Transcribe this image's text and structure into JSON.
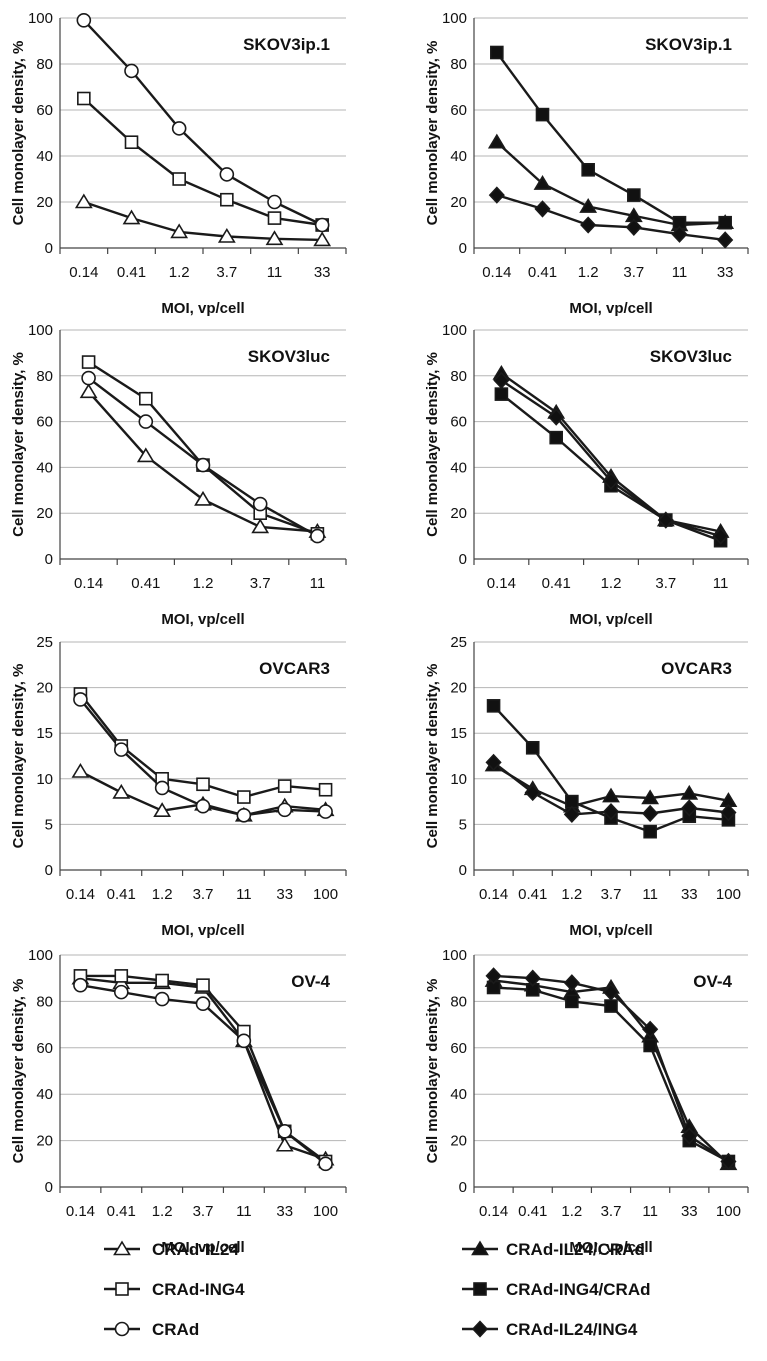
{
  "figure": {
    "ylabel": "Cell monolayer density, %",
    "xlabel": "MOI, vp/cell"
  },
  "legend": {
    "left": [
      {
        "name": "CRAd-IL24",
        "marker": "triangle-open"
      },
      {
        "name": "CRAd-ING4",
        "marker": "square-open"
      },
      {
        "name": "CRAd",
        "marker": "circle-open"
      }
    ],
    "right": [
      {
        "name": "CRAd-IL24/CRAd",
        "marker": "triangle-filled"
      },
      {
        "name": "CRAd-ING4/CRAd",
        "marker": "square-filled"
      },
      {
        "name": "CRAd-IL24/ING4",
        "marker": "diamond-filled"
      }
    ]
  },
  "colors": {
    "line": "#1a1a1a",
    "grid": "#b5b5b5",
    "open_fill": "#ffffff",
    "filled": "#111111"
  },
  "chart_data": [
    {
      "type": "line",
      "title": "SKOV3ip.1",
      "xlabel": "MOI, vp/cell",
      "ylabel": "Cell monolayer density, %",
      "categories": [
        "0.14",
        "0.41",
        "1.2",
        "3.7",
        "11",
        "33"
      ],
      "ylim": [
        0,
        100
      ],
      "yticks": [
        0,
        20,
        40,
        60,
        80,
        100
      ],
      "grid": "horizontal",
      "series": [
        {
          "name": "CRAd-IL24",
          "marker": "triangle-open",
          "values": [
            20,
            13,
            7,
            5,
            4,
            3.5
          ]
        },
        {
          "name": "CRAd-ING4",
          "marker": "square-open",
          "values": [
            65,
            46,
            30,
            21,
            13,
            10
          ]
        },
        {
          "name": "CRAd",
          "marker": "circle-open",
          "values": [
            99,
            77,
            52,
            32,
            20,
            10
          ]
        }
      ]
    },
    {
      "type": "line",
      "title": "SKOV3ip.1",
      "xlabel": "MOI, vp/cell",
      "ylabel": "Cell monolayer density, %",
      "categories": [
        "0.14",
        "0.41",
        "1.2",
        "3.7",
        "11",
        "33"
      ],
      "ylim": [
        0,
        100
      ],
      "yticks": [
        0,
        20,
        40,
        60,
        80,
        100
      ],
      "grid": "horizontal",
      "series": [
        {
          "name": "CRAd-IL24/CRAd",
          "marker": "triangle-filled",
          "values": [
            46,
            28,
            18,
            14,
            10,
            11
          ]
        },
        {
          "name": "CRAd-ING4/CRAd",
          "marker": "square-filled",
          "values": [
            85,
            58,
            34,
            23,
            11,
            11
          ]
        },
        {
          "name": "CRAd-IL24/ING4",
          "marker": "diamond-filled",
          "values": [
            23,
            17,
            10,
            9,
            6,
            3.5
          ]
        }
      ]
    },
    {
      "type": "line",
      "title": "SKOV3luc",
      "xlabel": "MOI, vp/cell",
      "ylabel": "Cell monolayer density, %",
      "categories": [
        "0.14",
        "0.41",
        "1.2",
        "3.7",
        "11"
      ],
      "ylim": [
        0,
        100
      ],
      "yticks": [
        0,
        20,
        40,
        60,
        80,
        100
      ],
      "grid": "horizontal",
      "series": [
        {
          "name": "CRAd-IL24",
          "marker": "triangle-open",
          "values": [
            73,
            45,
            26,
            14,
            12
          ]
        },
        {
          "name": "CRAd-ING4",
          "marker": "square-open",
          "values": [
            86,
            70,
            41,
            20,
            11
          ]
        },
        {
          "name": "CRAd",
          "marker": "circle-open",
          "values": [
            79,
            60,
            41,
            24,
            10
          ]
        }
      ]
    },
    {
      "type": "line",
      "title": "SKOV3luc",
      "xlabel": "MOI, vp/cell",
      "ylabel": "Cell monolayer density, %",
      "categories": [
        "0.14",
        "0.41",
        "1.2",
        "3.7",
        "11"
      ],
      "ylim": [
        0,
        100
      ],
      "yticks": [
        0,
        20,
        40,
        60,
        80,
        100
      ],
      "grid": "horizontal",
      "series": [
        {
          "name": "CRAd-IL24/CRAd",
          "marker": "triangle-filled",
          "values": [
            81,
            64,
            36,
            17,
            12
          ]
        },
        {
          "name": "CRAd-ING4/CRAd",
          "marker": "square-filled",
          "values": [
            72,
            53,
            32,
            17,
            8
          ]
        },
        {
          "name": "CRAd-IL24/ING4",
          "marker": "diamond-filled",
          "values": [
            78,
            62,
            34,
            17,
            10
          ]
        }
      ]
    },
    {
      "type": "line",
      "title": "OVCAR3",
      "xlabel": "MOI, vp/cell",
      "ylabel": "Cell monolayer density, %",
      "categories": [
        "0.14",
        "0.41",
        "1.2",
        "3.7",
        "11",
        "33",
        "100"
      ],
      "ylim": [
        0,
        25
      ],
      "yticks": [
        0,
        5,
        10,
        15,
        20,
        25
      ],
      "grid": "horizontal",
      "series": [
        {
          "name": "CRAd-IL24",
          "marker": "triangle-open",
          "values": [
            10.8,
            8.5,
            6.5,
            7.2,
            6,
            7,
            6.6
          ]
        },
        {
          "name": "CRAd-ING4",
          "marker": "square-open",
          "values": [
            19.3,
            13.6,
            10,
            9.4,
            8,
            9.2,
            8.8
          ]
        },
        {
          "name": "CRAd",
          "marker": "circle-open",
          "values": [
            18.7,
            13.2,
            9,
            7,
            6,
            6.6,
            6.4
          ]
        }
      ]
    },
    {
      "type": "line",
      "title": "OVCAR3",
      "xlabel": "MOI, vp/cell",
      "ylabel": "Cell monolayer density, %",
      "categories": [
        "0.14",
        "0.41",
        "1.2",
        "3.7",
        "11",
        "33",
        "100"
      ],
      "ylim": [
        0,
        25
      ],
      "yticks": [
        0,
        5,
        10,
        15,
        20,
        25
      ],
      "grid": "horizontal",
      "series": [
        {
          "name": "CRAd-IL24/CRAd",
          "marker": "triangle-filled",
          "values": [
            11.5,
            8.9,
            7,
            8.1,
            7.9,
            8.4,
            7.6
          ]
        },
        {
          "name": "CRAd-ING4/CRAd",
          "marker": "square-filled",
          "values": [
            18,
            13.4,
            7.5,
            5.7,
            4.2,
            5.9,
            5.5
          ]
        },
        {
          "name": "CRAd-IL24/ING4",
          "marker": "diamond-filled",
          "values": [
            11.8,
            8.5,
            6.1,
            6.4,
            6.2,
            6.8,
            6.3
          ]
        }
      ]
    },
    {
      "type": "line",
      "title": "OV-4",
      "xlabel": "MOI, vp/cell",
      "ylabel": "Cell monolayer density, %",
      "categories": [
        "0.14",
        "0.41",
        "1.2",
        "3.7",
        "11",
        "33",
        "100"
      ],
      "ylim": [
        0,
        100
      ],
      "yticks": [
        0,
        20,
        40,
        60,
        80,
        100
      ],
      "grid": "horizontal",
      "series": [
        {
          "name": "CRAd-IL24",
          "marker": "triangle-open",
          "values": [
            90,
            88,
            88,
            86,
            63,
            18,
            12
          ]
        },
        {
          "name": "CRAd-ING4",
          "marker": "square-open",
          "values": [
            91,
            91,
            89,
            87,
            67,
            24,
            11
          ]
        },
        {
          "name": "CRAd",
          "marker": "circle-open",
          "values": [
            87,
            84,
            81,
            79,
            63,
            24,
            10
          ]
        }
      ]
    },
    {
      "type": "line",
      "title": "OV-4",
      "xlabel": "MOI, vp/cell",
      "ylabel": "Cell monolayer density, %",
      "categories": [
        "0.14",
        "0.41",
        "1.2",
        "3.7",
        "11",
        "33",
        "100"
      ],
      "ylim": [
        0,
        100
      ],
      "yticks": [
        0,
        20,
        40,
        60,
        80,
        100
      ],
      "grid": "horizontal",
      "series": [
        {
          "name": "CRAd-IL24/CRAd",
          "marker": "triangle-filled",
          "values": [
            89,
            87,
            84,
            86,
            65,
            26,
            10
          ]
        },
        {
          "name": "CRAd-ING4/CRAd",
          "marker": "square-filled",
          "values": [
            86,
            85,
            80,
            78,
            61,
            20,
            11
          ]
        },
        {
          "name": "CRAd-IL24/ING4",
          "marker": "diamond-filled",
          "values": [
            91,
            90,
            88,
            84,
            68,
            22,
            11
          ]
        }
      ]
    }
  ]
}
